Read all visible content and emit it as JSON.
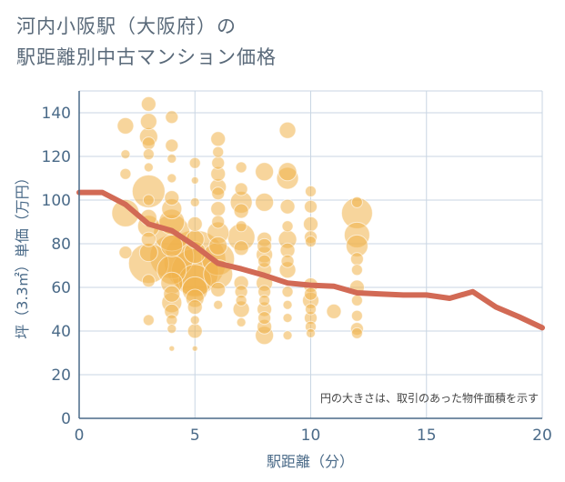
{
  "title": {
    "line1": "河内小阪駅（大阪府）の",
    "line2": "駅距離別中古マンション価格"
  },
  "chart_data": {
    "type": "scatter",
    "xlabel": "駅距離（分）",
    "ylabel": "坪（3.3㎡）単価（万円）",
    "xlim": [
      0,
      20
    ],
    "ylim": [
      0,
      150
    ],
    "x_ticks": [
      "0",
      "5",
      "10",
      "15",
      "20"
    ],
    "y_ticks": [
      "0",
      "20",
      "40",
      "60",
      "80",
      "100",
      "120",
      "140"
    ],
    "grid": true,
    "note": "円の大きさは、取引のあった物件面積を示す",
    "colors": {
      "bubble": "#f0b34a",
      "line": "#d26a55",
      "grid": "#c9d6e3",
      "axis": "#4a6a88"
    },
    "line": [
      [
        0,
        103.5
      ],
      [
        1,
        103.5
      ],
      [
        2,
        98
      ],
      [
        3,
        89
      ],
      [
        4,
        86
      ],
      [
        5,
        79
      ],
      [
        6,
        71
      ],
      [
        7,
        68.5
      ],
      [
        8,
        65.5
      ],
      [
        9,
        62
      ],
      [
        10,
        61
      ],
      [
        11,
        60.5
      ],
      [
        12,
        57.5
      ],
      [
        13,
        57
      ],
      [
        14,
        56.5
      ],
      [
        15,
        56.5
      ],
      [
        16,
        55
      ],
      [
        17,
        58
      ],
      [
        18,
        51
      ],
      [
        19,
        46.5
      ],
      [
        20,
        41.5
      ]
    ],
    "points": [
      [
        2,
        134,
        9
      ],
      [
        2,
        121,
        5
      ],
      [
        2,
        112,
        6
      ],
      [
        2,
        94,
        15
      ],
      [
        2,
        76,
        7
      ],
      [
        3,
        144,
        8
      ],
      [
        3,
        136,
        9
      ],
      [
        3,
        129,
        10
      ],
      [
        3,
        126,
        7
      ],
      [
        3,
        121,
        6
      ],
      [
        3,
        115,
        5
      ],
      [
        3,
        104,
        18
      ],
      [
        3,
        100,
        6
      ],
      [
        3,
        92,
        9
      ],
      [
        3,
        88,
        12
      ],
      [
        3,
        82,
        8
      ],
      [
        3,
        76,
        10
      ],
      [
        3,
        71,
        22
      ],
      [
        3,
        63,
        7
      ],
      [
        3,
        45,
        6
      ],
      [
        4,
        138,
        7
      ],
      [
        4,
        125,
        7
      ],
      [
        4,
        119,
        5
      ],
      [
        4,
        110,
        5
      ],
      [
        4,
        101,
        8
      ],
      [
        4,
        96,
        11
      ],
      [
        4,
        90,
        14
      ],
      [
        4,
        85,
        20
      ],
      [
        4,
        79,
        12
      ],
      [
        4,
        74,
        24
      ],
      [
        4,
        68,
        16
      ],
      [
        4,
        62,
        12
      ],
      [
        4,
        57,
        9
      ],
      [
        4,
        53,
        11
      ],
      [
        4,
        49,
        8
      ],
      [
        4,
        45,
        6
      ],
      [
        4,
        41,
        5
      ],
      [
        4,
        32,
        3
      ],
      [
        5,
        117,
        6
      ],
      [
        5,
        109,
        4
      ],
      [
        5,
        99,
        5
      ],
      [
        5,
        89,
        8
      ],
      [
        5,
        82,
        10
      ],
      [
        5,
        76,
        12
      ],
      [
        5,
        72,
        34
      ],
      [
        5,
        67,
        26
      ],
      [
        5,
        63,
        18
      ],
      [
        5,
        59,
        14
      ],
      [
        5,
        55,
        10
      ],
      [
        5,
        51,
        8
      ],
      [
        5,
        45,
        5
      ],
      [
        5,
        40,
        8
      ],
      [
        5,
        32,
        3
      ],
      [
        6,
        128,
        8
      ],
      [
        6,
        122,
        6
      ],
      [
        6,
        117,
        7
      ],
      [
        6,
        112,
        8
      ],
      [
        6,
        106,
        9
      ],
      [
        6,
        103,
        7
      ],
      [
        6,
        96,
        8
      ],
      [
        6,
        90,
        7
      ],
      [
        6,
        85,
        12
      ],
      [
        6,
        79,
        10
      ],
      [
        6,
        73,
        18
      ],
      [
        6,
        66,
        16
      ],
      [
        6,
        59,
        8
      ],
      [
        6,
        52,
        5
      ],
      [
        7,
        115,
        6
      ],
      [
        7,
        105,
        7
      ],
      [
        7,
        99,
        12
      ],
      [
        7,
        95,
        8
      ],
      [
        7,
        88,
        6
      ],
      [
        7,
        83,
        15
      ],
      [
        7,
        78,
        8
      ],
      [
        7,
        62,
        8
      ],
      [
        7,
        58,
        7
      ],
      [
        7,
        54,
        6
      ],
      [
        7,
        50,
        9
      ],
      [
        7,
        44,
        5
      ],
      [
        8,
        113,
        10
      ],
      [
        8,
        99,
        10
      ],
      [
        8,
        82,
        8
      ],
      [
        8,
        79,
        8
      ],
      [
        8,
        75,
        9
      ],
      [
        8,
        72,
        7
      ],
      [
        8,
        68,
        8
      ],
      [
        8,
        62,
        9
      ],
      [
        8,
        58,
        7
      ],
      [
        8,
        54,
        6
      ],
      [
        8,
        50,
        8
      ],
      [
        8,
        46,
        7
      ],
      [
        8,
        42,
        8
      ],
      [
        8,
        38,
        10
      ],
      [
        9,
        132,
        9
      ],
      [
        9,
        113,
        10
      ],
      [
        9,
        110,
        12
      ],
      [
        9,
        97,
        8
      ],
      [
        9,
        88,
        6
      ],
      [
        9,
        82,
        10
      ],
      [
        9,
        77,
        8
      ],
      [
        9,
        72,
        7
      ],
      [
        9,
        68,
        9
      ],
      [
        9,
        58,
        6
      ],
      [
        9,
        52,
        5
      ],
      [
        9,
        46,
        5
      ],
      [
        9,
        38,
        5
      ],
      [
        10,
        104,
        6
      ],
      [
        10,
        97,
        7
      ],
      [
        10,
        89,
        8
      ],
      [
        10,
        83,
        7
      ],
      [
        10,
        81,
        6
      ],
      [
        10,
        61,
        8
      ],
      [
        10,
        57,
        7
      ],
      [
        10,
        54,
        9
      ],
      [
        10,
        50,
        6
      ],
      [
        10,
        46,
        7
      ],
      [
        10,
        42,
        6
      ],
      [
        10,
        39,
        5
      ],
      [
        11,
        49,
        8
      ],
      [
        12,
        99,
        6
      ],
      [
        12,
        94,
        17
      ],
      [
        12,
        84,
        14
      ],
      [
        12,
        79,
        12
      ],
      [
        12,
        73,
        7
      ],
      [
        12,
        68,
        6
      ],
      [
        12,
        60,
        8
      ],
      [
        12,
        54,
        6
      ],
      [
        12,
        47,
        6
      ],
      [
        12,
        41,
        7
      ],
      [
        12,
        39,
        6
      ]
    ]
  }
}
